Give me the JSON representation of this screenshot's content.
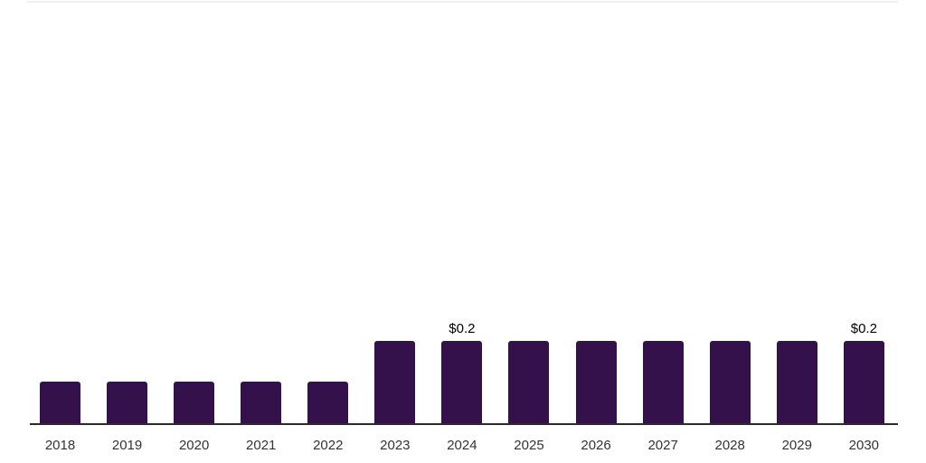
{
  "chart": {
    "background": "#ffffff",
    "top_border_color": "#f0f0f1",
    "axis_line_color": "#2b2b2b",
    "bar_color": "#35114c",
    "tick_label_color": "#333333",
    "value_label_color": "#000000"
  },
  "chart_data": {
    "type": "bar",
    "title": "",
    "xlabel": "",
    "ylabel": "",
    "categories": [
      "2018",
      "2019",
      "2020",
      "2021",
      "2022",
      "2023",
      "2024",
      "2025",
      "2026",
      "2027",
      "2028",
      "2029",
      "2030"
    ],
    "values": [
      0.1,
      0.1,
      0.1,
      0.1,
      0.1,
      0.2,
      0.2,
      0.2,
      0.2,
      0.2,
      0.2,
      0.2,
      0.2
    ],
    "value_labels": [
      "",
      "",
      "",
      "",
      "",
      "",
      "$0.2",
      "",
      "",
      "",
      "",
      "",
      "$0.2"
    ],
    "ylim": [
      0,
      1.0
    ],
    "grid": false,
    "legend": false,
    "data_label_currency_prefix": "$"
  }
}
